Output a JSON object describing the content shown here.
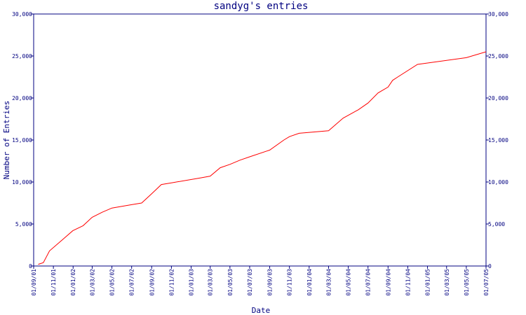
{
  "chart_data": {
    "type": "line",
    "title": "sandyg's entries",
    "xlabel": "Date",
    "ylabel": "Number of Entries",
    "ylim": [
      0,
      30000
    ],
    "y_ticks": [
      0,
      5000,
      10000,
      15000,
      20000,
      25000,
      30000
    ],
    "y_tick_labels": [
      "0",
      "5,000",
      "10,000",
      "15,000",
      "20,000",
      "25,000",
      "30,000"
    ],
    "x_ticks": [
      "01/09/01",
      "01/11/01",
      "01/01/02",
      "01/03/02",
      "01/05/02",
      "01/07/02",
      "01/09/02",
      "01/11/02",
      "01/01/03",
      "01/03/03",
      "01/05/03",
      "01/07/03",
      "01/09/03",
      "01/11/03",
      "01/01/04",
      "01/03/04",
      "01/05/04",
      "01/07/04",
      "01/09/04",
      "01/11/04",
      "01/01/05",
      "01/03/05",
      "01/05/05",
      "01/07/05"
    ],
    "grid": false,
    "colors": {
      "line": "#ff0000",
      "axis": "#000080",
      "text": "#000080"
    },
    "series": [
      {
        "points": [
          [
            "2001-09-15",
            200
          ],
          [
            "2001-10-01",
            400
          ],
          [
            "2001-10-20",
            1800
          ],
          [
            "2001-12-01",
            3200
          ],
          [
            "2001-12-31",
            4200
          ],
          [
            "2002-02-01",
            4800
          ],
          [
            "2002-03-01",
            5800
          ],
          [
            "2002-04-01",
            6400
          ],
          [
            "2002-05-01",
            6900
          ],
          [
            "2002-06-01",
            7100
          ],
          [
            "2002-07-01",
            7300
          ],
          [
            "2002-08-01",
            7500
          ],
          [
            "2002-09-01",
            8600
          ],
          [
            "2002-10-01",
            9700
          ],
          [
            "2002-11-01",
            9900
          ],
          [
            "2003-02-01",
            10500
          ],
          [
            "2003-03-01",
            10700
          ],
          [
            "2003-04-01",
            11700
          ],
          [
            "2003-05-01",
            12100
          ],
          [
            "2003-06-01",
            12600
          ],
          [
            "2003-07-01",
            13000
          ],
          [
            "2003-09-01",
            13800
          ],
          [
            "2003-10-15",
            15000
          ],
          [
            "2003-11-01",
            15400
          ],
          [
            "2003-12-01",
            15800
          ],
          [
            "2004-03-01",
            16100
          ],
          [
            "2004-04-15",
            17600
          ],
          [
            "2004-06-01",
            18600
          ],
          [
            "2004-07-01",
            19400
          ],
          [
            "2004-08-01",
            20600
          ],
          [
            "2004-09-01",
            21300
          ],
          [
            "2004-09-15",
            22100
          ],
          [
            "2004-10-01",
            22500
          ],
          [
            "2004-12-01",
            24000
          ],
          [
            "2005-05-01",
            24800
          ],
          [
            "2005-07-01",
            25500
          ]
        ]
      }
    ]
  }
}
